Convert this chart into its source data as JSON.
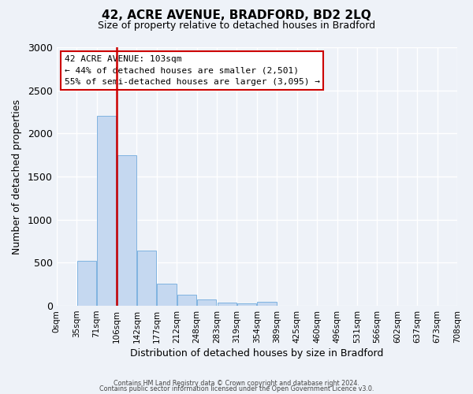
{
  "title": "42, ACRE AVENUE, BRADFORD, BD2 2LQ",
  "subtitle": "Size of property relative to detached houses in Bradford",
  "xlabel": "Distribution of detached houses by size in Bradford",
  "ylabel": "Number of detached properties",
  "bin_labels": [
    "0sqm",
    "35sqm",
    "71sqm",
    "106sqm",
    "142sqm",
    "177sqm",
    "212sqm",
    "248sqm",
    "283sqm",
    "319sqm",
    "354sqm",
    "389sqm",
    "425sqm",
    "460sqm",
    "496sqm",
    "531sqm",
    "566sqm",
    "602sqm",
    "637sqm",
    "673sqm",
    "708sqm"
  ],
  "bar_values": [
    0,
    520,
    2200,
    1750,
    640,
    260,
    130,
    70,
    35,
    30,
    50,
    0,
    0,
    0,
    0,
    0,
    0,
    0,
    0,
    0
  ],
  "bar_color": "#c5d8f0",
  "bar_edge_color": "#7fb3e0",
  "vline_color": "#cc0000",
  "vline_pos": 2.5,
  "ylim": [
    0,
    3000
  ],
  "yticks": [
    0,
    500,
    1000,
    1500,
    2000,
    2500,
    3000
  ],
  "annotation_title": "42 ACRE AVENUE: 103sqm",
  "annotation_line1": "← 44% of detached houses are smaller (2,501)",
  "annotation_line2": "55% of semi-detached houses are larger (3,095) →",
  "annotation_box_color": "#ffffff",
  "annotation_box_edge": "#cc0000",
  "footer1": "Contains HM Land Registry data © Crown copyright and database right 2024.",
  "footer2": "Contains public sector information licensed under the Open Government Licence v3.0.",
  "background_color": "#eef2f8",
  "grid_color": "#ffffff"
}
